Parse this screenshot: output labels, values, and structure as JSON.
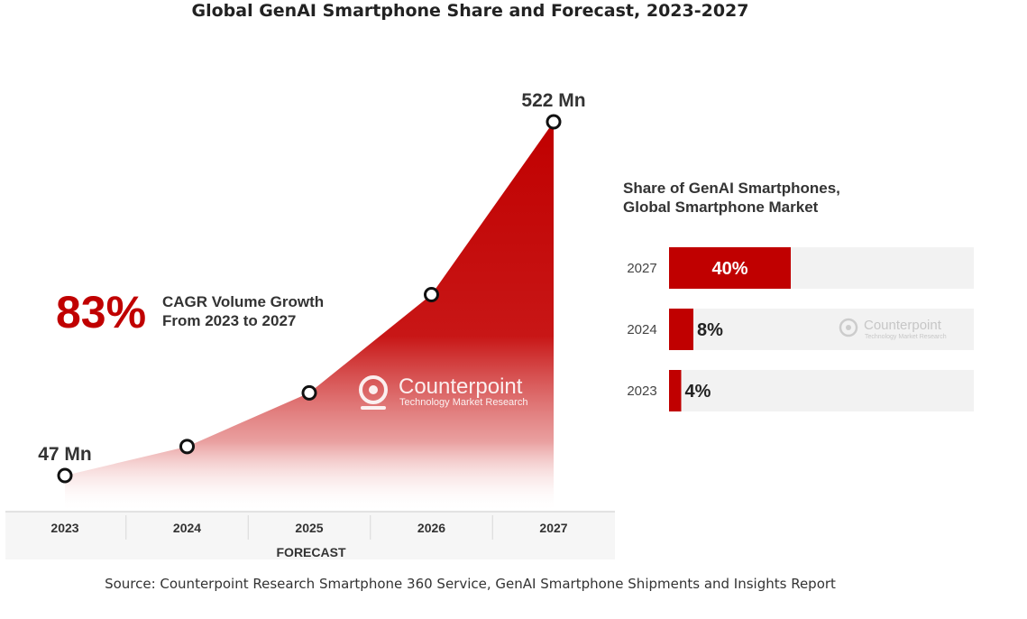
{
  "title": "Global GenAI Smartphone Share and Forecast, 2023-2027",
  "source": "Source: Counterpoint Research Smartphone 360 Service, GenAI Smartphone Shipments and Insights Report",
  "colors": {
    "accent": "#c00000",
    "bar_track": "#f2f2f2",
    "text": "#222222"
  },
  "logo": {
    "brand": "Counterpoint",
    "tagline": "Technology Market Research"
  },
  "chart_data": [
    {
      "type": "area",
      "title": "",
      "unit": "Mn",
      "x": [
        "2023",
        "2024",
        "2025",
        "2026",
        "2027"
      ],
      "values": [
        47,
        86,
        158,
        290,
        522
      ],
      "point_labels": [
        {
          "index": 0,
          "text": "47 Mn"
        },
        {
          "index": 4,
          "text": "522 Mn"
        }
      ],
      "forecast_label": "FORECAST",
      "annotation": {
        "value": "83%",
        "lines": [
          "CAGR Volume Growth",
          "From 2023 to 2027"
        ]
      },
      "ylim": [
        0,
        560
      ],
      "grid": false
    },
    {
      "type": "bar",
      "orientation": "horizontal",
      "title": [
        "Share of GenAI Smartphones,",
        "Global Smartphone Market"
      ],
      "categories": [
        "2027",
        "2024",
        "2023"
      ],
      "values": [
        40,
        8,
        4
      ],
      "labels": [
        "40%",
        "8%",
        "4%"
      ],
      "xlim": [
        0,
        100
      ]
    }
  ]
}
